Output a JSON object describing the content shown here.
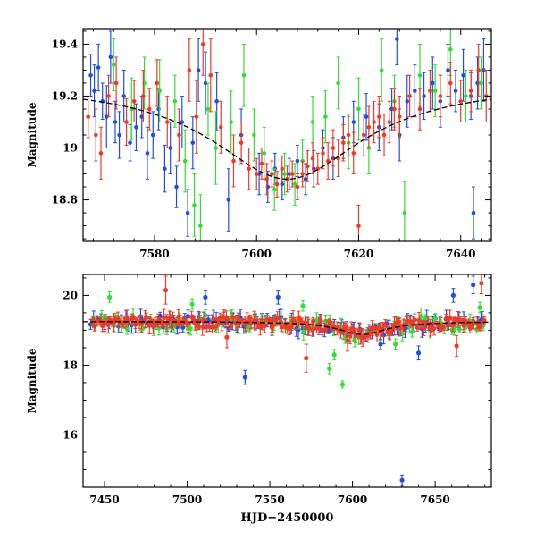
{
  "chart_data": [
    {
      "type": "scatter",
      "panel": "top",
      "title": "",
      "xlabel": "",
      "ylabel": "Magnitude",
      "xlim": [
        7566,
        7646
      ],
      "ylim": [
        19.46,
        18.64
      ],
      "y_inverted": true,
      "x_ticks": [
        7580,
        7600,
        7620,
        7640
      ],
      "x_tick_labels": [
        "7580",
        "7600",
        "7620",
        "7640"
      ],
      "y_ticks": [
        18.8,
        19.0,
        19.2,
        19.4
      ],
      "y_tick_labels": [
        "18.8",
        "19",
        "19.2",
        "19.4"
      ],
      "grid": false,
      "legend": "none",
      "model_curve": {
        "color": "#000000",
        "style": "dashed",
        "baseline": 19.25,
        "peak_mag": 18.88,
        "peak_x": 7606,
        "width_days": 18
      },
      "series": [
        {
          "color": "#1f4fe0",
          "points": [
            [
              7567.5,
              19.28,
              0.08
            ],
            [
              7568.2,
              19.22,
              0.1
            ],
            [
              7569.0,
              19.31,
              0.09
            ],
            [
              7569.8,
              19.18,
              0.07
            ],
            [
              7570.6,
              19.12,
              0.12
            ],
            [
              7571.4,
              19.35,
              0.1
            ],
            [
              7572.3,
              19.1,
              0.08
            ],
            [
              7573.1,
              19.05,
              0.09
            ],
            [
              7574.0,
              19.2,
              0.1
            ],
            [
              7575.2,
              19.02,
              0.07
            ],
            [
              7576.4,
              19.08,
              0.09
            ],
            [
              7577.5,
              19.12,
              0.08
            ],
            [
              7578.6,
              18.98,
              0.1
            ],
            [
              7579.7,
              19.05,
              0.09
            ],
            [
              7580.8,
              19.15,
              0.08
            ],
            [
              7582.0,
              18.92,
              0.09
            ],
            [
              7583.1,
              19.0,
              0.1
            ],
            [
              7584.3,
              18.85,
              0.08
            ],
            [
              7585.4,
              19.1,
              0.1
            ],
            [
              7586.5,
              18.75,
              0.09
            ],
            [
              7587.5,
              19.02,
              0.1
            ],
            [
              7588.6,
              19.3,
              0.12
            ],
            [
              7590.0,
              19.25,
              0.12
            ],
            [
              7592.2,
              19.18,
              0.11
            ],
            [
              7594.5,
              18.8,
              0.12
            ],
            [
              7597.0,
              19.05,
              0.1
            ],
            [
              7600.5,
              18.9,
              0.08
            ],
            [
              7602.2,
              18.85,
              0.06
            ],
            [
              7603.6,
              18.92,
              0.06
            ],
            [
              7605.0,
              18.86,
              0.06
            ],
            [
              7606.4,
              18.9,
              0.06
            ],
            [
              7608.0,
              18.95,
              0.06
            ],
            [
              7609.6,
              18.88,
              0.06
            ],
            [
              7611.2,
              18.92,
              0.07
            ],
            [
              7613.0,
              19.0,
              0.07
            ],
            [
              7615.0,
              18.96,
              0.08
            ],
            [
              7617.0,
              19.04,
              0.08
            ],
            [
              7619.0,
              19.1,
              0.08
            ],
            [
              7621.5,
              19.12,
              0.09
            ],
            [
              7624.0,
              19.08,
              0.09
            ],
            [
              7626.5,
              19.15,
              0.08
            ],
            [
              7628.0,
              19.05,
              0.1
            ],
            [
              7629.5,
              19.18,
              0.1
            ],
            [
              7631.0,
              19.22,
              0.1
            ],
            [
              7632.8,
              19.2,
              0.09
            ],
            [
              7634.5,
              19.25,
              0.1
            ],
            [
              7636.0,
              19.18,
              0.1
            ],
            [
              7637.5,
              19.3,
              0.1
            ],
            [
              7639.0,
              19.22,
              0.08
            ],
            [
              7640.5,
              19.28,
              0.1
            ],
            [
              7642.0,
              19.2,
              0.09
            ],
            [
              7643.3,
              19.25,
              0.1
            ],
            [
              7644.5,
              19.3,
              0.12
            ],
            [
              7642.5,
              18.75,
              0.1
            ],
            [
              7627.5,
              19.42,
              0.1
            ]
          ]
        },
        {
          "color": "#33dd33",
          "points": [
            [
              7572.0,
              19.32,
              0.1
            ],
            [
              7575.5,
              19.15,
              0.12
            ],
            [
              7578.0,
              19.25,
              0.1
            ],
            [
              7581.0,
              19.22,
              0.12
            ],
            [
              7584.0,
              19.18,
              0.1
            ],
            [
              7586.0,
              18.95,
              0.12
            ],
            [
              7587.8,
              18.78,
              0.12
            ],
            [
              7589.0,
              18.7,
              0.12
            ],
            [
              7590.5,
              19.15,
              0.1
            ],
            [
              7592.0,
              19.0,
              0.14
            ],
            [
              7595.0,
              19.1,
              0.12
            ],
            [
              7597.5,
              19.28,
              0.12
            ],
            [
              7599.5,
              19.05,
              0.1
            ],
            [
              7601.5,
              18.98,
              0.1
            ],
            [
              7603.5,
              18.84,
              0.08
            ],
            [
              7605.5,
              18.9,
              0.08
            ],
            [
              7607.5,
              18.86,
              0.08
            ],
            [
              7609.0,
              18.95,
              0.08
            ],
            [
              7611.0,
              19.1,
              0.1
            ],
            [
              7613.5,
              19.12,
              0.1
            ],
            [
              7616.0,
              19.25,
              0.1
            ],
            [
              7618.0,
              19.02,
              0.1
            ],
            [
              7620.0,
              19.15,
              0.12
            ],
            [
              7622.0,
              19.0,
              0.1
            ],
            [
              7624.5,
              19.3,
              0.12
            ],
            [
              7627.0,
              19.18,
              0.1
            ],
            [
              7629.0,
              18.75,
              0.12
            ],
            [
              7632.0,
              19.28,
              0.12
            ],
            [
              7635.0,
              19.22,
              0.1
            ],
            [
              7638.0,
              19.38,
              0.1
            ],
            [
              7641.0,
              19.2,
              0.1
            ],
            [
              7644.0,
              19.25,
              0.1
            ]
          ]
        },
        {
          "color": "#f03a25",
          "points": [
            [
              7567.0,
              19.12,
              0.08
            ],
            [
              7568.5,
              19.05,
              0.1
            ],
            [
              7569.5,
              18.98,
              0.1
            ],
            [
              7571.0,
              19.2,
              0.08
            ],
            [
              7572.5,
              19.25,
              0.1
            ],
            [
              7574.5,
              19.1,
              0.09
            ],
            [
              7576.0,
              19.18,
              0.08
            ],
            [
              7577.8,
              19.2,
              0.1
            ],
            [
              7579.0,
              19.15,
              0.08
            ],
            [
              7580.5,
              19.25,
              0.09
            ],
            [
              7582.5,
              19.1,
              0.1
            ],
            [
              7584.8,
              19.05,
              0.1
            ],
            [
              7586.8,
              19.3,
              0.12
            ],
            [
              7588.2,
              19.12,
              0.14
            ],
            [
              7589.5,
              19.4,
              0.12
            ],
            [
              7591.0,
              19.28,
              0.14
            ],
            [
              7593.0,
              19.08,
              0.1
            ],
            [
              7595.5,
              18.95,
              0.1
            ],
            [
              7597.0,
              19.02,
              0.08
            ],
            [
              7598.5,
              18.92,
              0.08
            ],
            [
              7600.0,
              18.9,
              0.06
            ],
            [
              7601.0,
              18.94,
              0.06
            ],
            [
              7602.0,
              18.88,
              0.06
            ],
            [
              7603.0,
              18.9,
              0.05
            ],
            [
              7604.0,
              18.86,
              0.05
            ],
            [
              7605.0,
              18.92,
              0.05
            ],
            [
              7606.0,
              18.88,
              0.05
            ],
            [
              7607.0,
              18.9,
              0.05
            ],
            [
              7608.0,
              18.85,
              0.05
            ],
            [
              7609.0,
              18.9,
              0.05
            ],
            [
              7610.0,
              18.93,
              0.06
            ],
            [
              7611.0,
              18.96,
              0.06
            ],
            [
              7612.0,
              18.92,
              0.06
            ],
            [
              7613.0,
              18.98,
              0.06
            ],
            [
              7614.0,
              18.95,
              0.07
            ],
            [
              7615.0,
              19.0,
              0.07
            ],
            [
              7616.0,
              18.96,
              0.07
            ],
            [
              7617.0,
              19.02,
              0.07
            ],
            [
              7618.0,
              19.05,
              0.08
            ],
            [
              7619.0,
              18.98,
              0.08
            ],
            [
              7620.0,
              18.7,
              0.08
            ],
            [
              7621.0,
              19.05,
              0.08
            ],
            [
              7622.0,
              19.08,
              0.08
            ],
            [
              7623.0,
              19.1,
              0.08
            ],
            [
              7624.0,
              19.12,
              0.08
            ],
            [
              7625.0,
              19.05,
              0.08
            ],
            [
              7626.0,
              19.1,
              0.08
            ],
            [
              7627.0,
              19.15,
              0.08
            ],
            [
              7628.0,
              19.12,
              0.08
            ],
            [
              7630.0,
              19.2,
              0.08
            ],
            [
              7632.0,
              19.15,
              0.08
            ],
            [
              7634.0,
              19.22,
              0.08
            ],
            [
              7636.0,
              19.2,
              0.08
            ],
            [
              7638.0,
              19.25,
              0.08
            ],
            [
              7640.0,
              19.18,
              0.08
            ],
            [
              7642.0,
              19.22,
              0.08
            ],
            [
              7643.5,
              19.3,
              0.1
            ],
            [
              7645.0,
              19.2,
              0.1
            ]
          ]
        }
      ]
    },
    {
      "type": "scatter",
      "panel": "bottom",
      "title": "",
      "xlabel": "HJD−2450000",
      "ylabel": "Magnitude",
      "xlim": [
        7437,
        7684
      ],
      "ylim": [
        20.6,
        14.5
      ],
      "y_inverted": true,
      "x_ticks": [
        7450,
        7500,
        7550,
        7600,
        7650
      ],
      "x_tick_labels": [
        "7450",
        "7500",
        "7550",
        "7600",
        "7650"
      ],
      "y_ticks": [
        16,
        18,
        20
      ],
      "y_tick_labels": [
        "16",
        "18",
        "20"
      ],
      "grid": false,
      "legend": "none",
      "model_curve": {
        "color": "#000000",
        "style": "dashed",
        "baseline": 19.25,
        "peak_mag": 18.88,
        "peak_x": 7606,
        "width_days": 18
      },
      "outliers": [
        {
          "color": "#1f4fe0",
          "x": 7630,
          "y": 14.7,
          "e": 0.15
        },
        {
          "color": "#1f4fe0",
          "x": 7535,
          "y": 17.65,
          "e": 0.2
        },
        {
          "color": "#1f4fe0",
          "x": 7640,
          "y": 18.35,
          "e": 0.2
        },
        {
          "color": "#1f4fe0",
          "x": 7617,
          "y": 18.6,
          "e": 0.15
        },
        {
          "color": "#1f4fe0",
          "x": 7661,
          "y": 20.0,
          "e": 0.2
        },
        {
          "color": "#1f4fe0",
          "x": 7673,
          "y": 20.3,
          "e": 0.25
        },
        {
          "color": "#1f4fe0",
          "x": 7511,
          "y": 19.95,
          "e": 0.2
        },
        {
          "color": "#1f4fe0",
          "x": 7555,
          "y": 19.95,
          "e": 0.2
        },
        {
          "color": "#f03a25",
          "x": 7572,
          "y": 18.2,
          "e": 0.4
        },
        {
          "color": "#f03a25",
          "x": 7487,
          "y": 20.15,
          "e": 0.4
        },
        {
          "color": "#f03a25",
          "x": 7524,
          "y": 18.8,
          "e": 0.3
        },
        {
          "color": "#f03a25",
          "x": 7663,
          "y": 18.55,
          "e": 0.3
        },
        {
          "color": "#f03a25",
          "x": 7678,
          "y": 20.35,
          "e": 0.3
        },
        {
          "color": "#f03a25",
          "x": 7597,
          "y": 18.7,
          "e": 0.3
        },
        {
          "color": "#33dd33",
          "x": 7594,
          "y": 17.45,
          "e": 0.1
        },
        {
          "color": "#33dd33",
          "x": 7586,
          "y": 17.9,
          "e": 0.15
        },
        {
          "color": "#33dd33",
          "x": 7589,
          "y": 18.3,
          "e": 0.15
        },
        {
          "color": "#33dd33",
          "x": 7453,
          "y": 19.95,
          "e": 0.15
        },
        {
          "color": "#33dd33",
          "x": 7626,
          "y": 18.6,
          "e": 0.15
        },
        {
          "color": "#33dd33",
          "x": 7503,
          "y": 19.75,
          "e": 0.15
        },
        {
          "color": "#33dd33",
          "x": 7570,
          "y": 19.7,
          "e": 0.15
        },
        {
          "color": "#33dd33",
          "x": 7677,
          "y": 19.65,
          "e": 0.15
        }
      ],
      "series": [
        {
          "color": "#1f4fe0",
          "x_start": 7442,
          "x_end": 7680,
          "step": 2.1,
          "base": 19.25,
          "scatter": 0.17,
          "seed": 11
        },
        {
          "color": "#33dd33",
          "x_start": 7445,
          "x_end": 7680,
          "step": 3.2,
          "base": 19.22,
          "scatter": 0.22,
          "seed": 23
        },
        {
          "color": "#f03a25",
          "x_start": 7443,
          "x_end": 7680,
          "step": 1.35,
          "base": 19.28,
          "scatter": 0.15,
          "seed": 37
        }
      ]
    }
  ]
}
